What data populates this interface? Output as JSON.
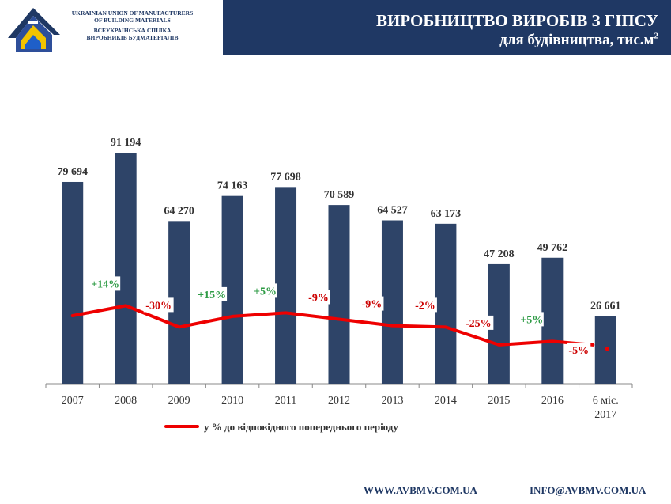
{
  "header": {
    "org_en_line1": "UKRAINIAN UNION OF MANUFACTURERS",
    "org_en_line2": "OF BUILDING MATERIALS",
    "org_ua_line1": "ВСЕУКРАЇНСЬКА СПІЛКА",
    "org_ua_line2": "ВИРОБНИКІВ БУДМАТЕРІАЛІВ",
    "title_line1": "ВИРОБНИЦТВО ВИРОБІВ З ГІПСУ",
    "title_line2": "для будівництва, тис.м",
    "title_sup": "2",
    "logo_icon": "house-logo-icon"
  },
  "footer": {
    "website": "WWW.AVBMV.COM.UA",
    "email": "INFO@AVBMV.COM.UA"
  },
  "colors": {
    "bar": "#2e4468",
    "line": "#ee0000",
    "positive": "#2e9b45",
    "negative": "#cc0000",
    "banner": "#1f3864",
    "value_label": "#333333"
  },
  "chart_data": {
    "type": "bar",
    "categories": [
      "2007",
      "2008",
      "2009",
      "2010",
      "2011",
      "2012",
      "2013",
      "2014",
      "2015",
      "2016",
      "6 міс. 2017"
    ],
    "values": [
      79694,
      91194,
      64270,
      74163,
      77698,
      70589,
      64527,
      63173,
      47208,
      49762,
      26661
    ],
    "value_labels": [
      "79 694",
      "91 194",
      "64 270",
      "74 163",
      "77 698",
      "70 589",
      "64 527",
      "63 173",
      "47 208",
      "49 762",
      "26 661"
    ],
    "ylim": [
      0,
      100000
    ],
    "grid": false,
    "series": [
      {
        "type": "line",
        "name": "у % до відповідного попереднього періоду",
        "values": [
          null,
          14,
          -30,
          15,
          5,
          -9,
          -9,
          -2,
          -25,
          5,
          -5
        ],
        "labels": [
          "",
          "+14%",
          "-30%",
          "+15%",
          "+5%",
          "-9%",
          "-9%",
          "-2%",
          "-25%",
          "+5%",
          "-5%"
        ]
      }
    ],
    "legend": {
      "position": "bottom-left",
      "label": "у % до відповідного попереднього періоду"
    }
  }
}
